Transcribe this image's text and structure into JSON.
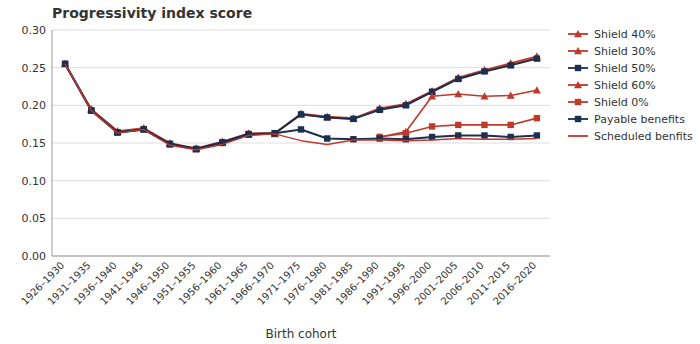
{
  "chart_data": {
    "type": "line",
    "title": "Progressivity index score",
    "x_label": "Birth cohort",
    "categories": [
      "1926–1930",
      "1931–1935",
      "1936–1940",
      "1941–1945",
      "1946–1950",
      "1951–1955",
      "1956–1960",
      "1961–1965",
      "1966–1970",
      "1971–1975",
      "1976–1980",
      "1981–1985",
      "1986–1990",
      "1991–1995",
      "1996–2000",
      "2001–2005",
      "2006–2010",
      "2011–2015",
      "2016–2020"
    ],
    "series": [
      {
        "name": "Shield 40%",
        "color": "#c0392b",
        "marker": "triangle",
        "values": [
          0.255,
          0.195,
          0.166,
          0.17,
          0.15,
          0.143,
          0.152,
          0.163,
          0.163,
          0.189,
          0.185,
          0.183,
          0.196,
          0.202,
          0.219,
          0.237,
          0.247,
          0.256,
          0.265
        ]
      },
      {
        "name": "Shield 30%",
        "color": "#c0392b",
        "marker": "triangle",
        "values": [
          0.255,
          0.194,
          0.165,
          0.169,
          0.149,
          0.142,
          0.151,
          0.162,
          0.162,
          0.188,
          0.184,
          0.182,
          0.195,
          0.201,
          0.218,
          0.236,
          0.246,
          0.254,
          0.263
        ]
      },
      {
        "name": "Shield 50%",
        "color": "#1b2f50",
        "marker": "square",
        "values": [
          0.255,
          0.193,
          0.164,
          0.168,
          0.149,
          0.142,
          0.151,
          0.162,
          0.163,
          0.188,
          0.184,
          0.182,
          0.194,
          0.2,
          0.218,
          0.235,
          0.245,
          0.253,
          0.262
        ]
      },
      {
        "name": "Shield 60%",
        "color": "#c0392b",
        "marker": "triangle",
        "values": [
          null,
          null,
          null,
          null,
          null,
          null,
          null,
          null,
          null,
          null,
          null,
          null,
          0.158,
          0.165,
          0.212,
          0.215,
          0.212,
          0.213,
          0.22
        ]
      },
      {
        "name": "Shield 0%",
        "color": "#c0392b",
        "marker": "square",
        "values": [
          null,
          null,
          null,
          null,
          null,
          null,
          null,
          null,
          null,
          null,
          null,
          null,
          0.158,
          0.163,
          0.172,
          0.174,
          0.174,
          0.174,
          0.183
        ]
      },
      {
        "name": "Payable benefits",
        "color": "#1b2f50",
        "marker": "square",
        "values": [
          0.255,
          0.193,
          0.164,
          0.168,
          0.148,
          0.142,
          0.15,
          0.161,
          0.163,
          0.168,
          0.156,
          0.155,
          0.156,
          0.155,
          0.158,
          0.16,
          0.16,
          0.158,
          0.16
        ]
      },
      {
        "name": "Scheduled benfits",
        "color": "#c0392b",
        "marker": "none",
        "values": [
          0.255,
          0.193,
          0.163,
          0.168,
          0.147,
          0.141,
          0.148,
          0.16,
          0.162,
          0.153,
          0.148,
          0.154,
          0.154,
          0.153,
          0.154,
          0.156,
          0.155,
          0.155,
          0.156
        ]
      }
    ],
    "ylim": [
      0.0,
      0.3
    ],
    "yticks": [
      {
        "value": 0.0,
        "label": "0.00"
      },
      0.05,
      {
        "value": 0.1,
        "label": "0.10"
      },
      0.15,
      {
        "value": 0.2,
        "label": "0.20"
      },
      0.25,
      {
        "value": 0.3,
        "label": "0.30"
      }
    ],
    "grid": true,
    "legend": "right"
  }
}
